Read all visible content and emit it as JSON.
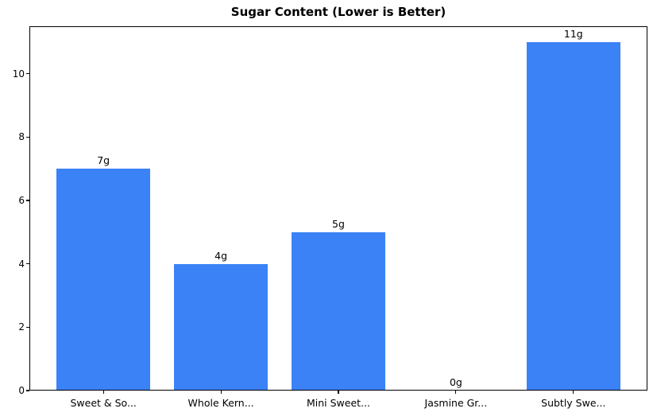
{
  "chart_data": {
    "type": "bar",
    "title": "Sugar Content (Lower is Better)",
    "categories": [
      "Sweet & So...",
      "Whole Kern...",
      "Mini Sweet...",
      "Jasmine Gr...",
      "Subtly Swe..."
    ],
    "values": [
      7,
      4,
      5,
      0,
      11
    ],
    "bar_labels": [
      "7g",
      "4g",
      "5g",
      "0g",
      "11g"
    ],
    "yticks": [
      0,
      2,
      4,
      6,
      8,
      10
    ],
    "ylim": [
      0,
      11.5
    ],
    "xlabel": "",
    "ylabel": "",
    "grid": false,
    "legend": "none",
    "bar_color": "#3b82f6"
  },
  "colors": {
    "bar": "#3b82f6",
    "axis": "#000000",
    "text": "#000000",
    "background": "#ffffff"
  }
}
